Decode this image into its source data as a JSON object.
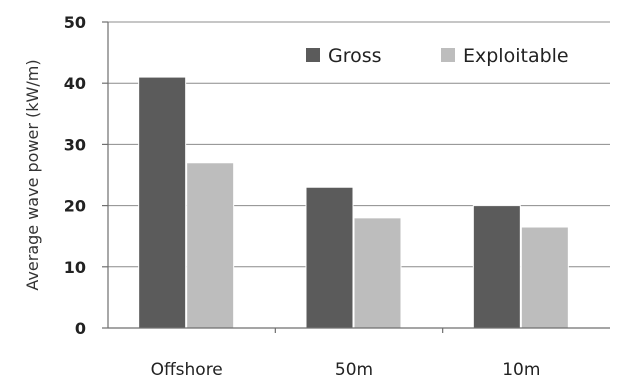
{
  "chart_data": {
    "type": "bar",
    "title": "",
    "xlabel": "",
    "ylabel": "Average wave power (kW/m)",
    "categories": [
      "Offshore",
      "50m",
      "10m"
    ],
    "series": [
      {
        "name": "Gross",
        "values": [
          41,
          23,
          20
        ],
        "color": "#5b5b5b"
      },
      {
        "name": "Exploitable",
        "values": [
          27,
          18,
          16.5
        ],
        "color": "#bdbdbd"
      }
    ],
    "ylim": [
      0,
      50
    ],
    "yticks": [
      0,
      10,
      20,
      30,
      40,
      50
    ],
    "grid": true,
    "legend_position": "top-right"
  }
}
